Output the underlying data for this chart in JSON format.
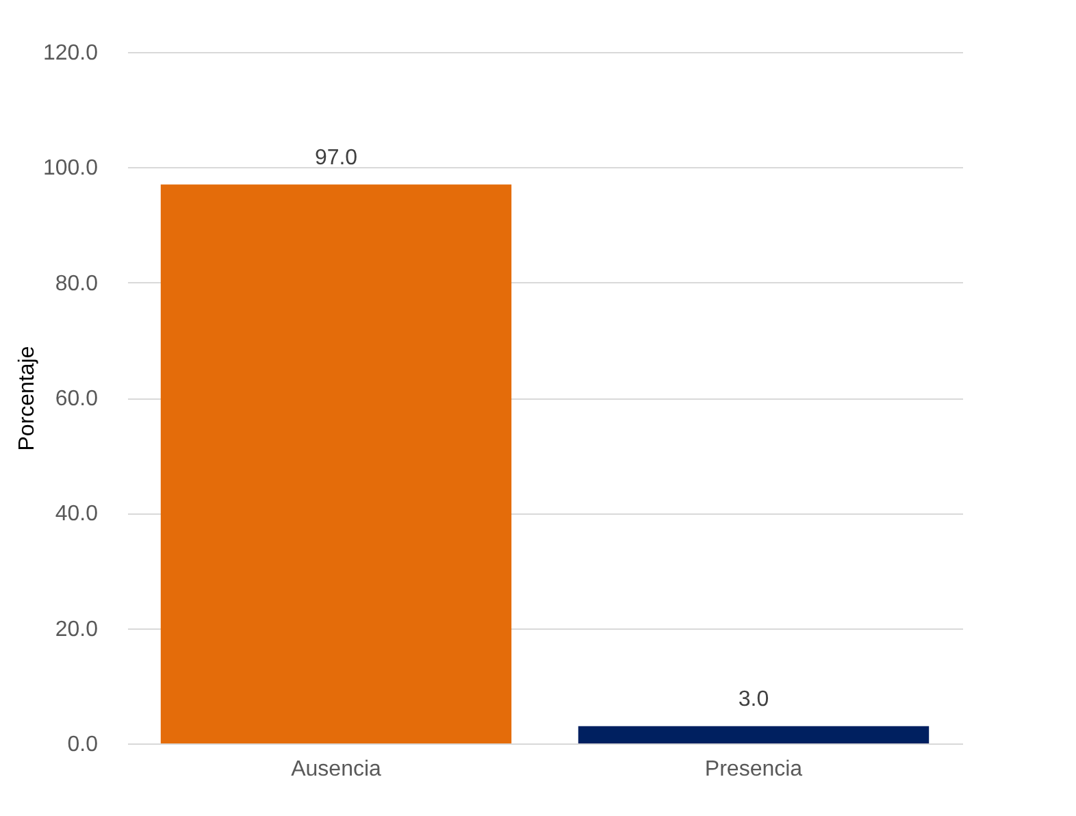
{
  "chart_data": {
    "type": "bar",
    "ylabel": "Porcentaje",
    "categories": [
      "Ausencia",
      "Presencia"
    ],
    "values": [
      97.0,
      3.0
    ],
    "colors": [
      "#e46c0a",
      "#002060"
    ],
    "value_labels": [
      "97.0",
      "3.0"
    ],
    "ylim": [
      0,
      120
    ],
    "yticks": [
      {
        "value": 0,
        "label": "0.0"
      },
      {
        "value": 20,
        "label": "20.0"
      },
      {
        "value": 40,
        "label": "40.0"
      },
      {
        "value": 60,
        "label": "60.0"
      },
      {
        "value": 80,
        "label": "80.0"
      },
      {
        "value": 100,
        "label": "100.0"
      },
      {
        "value": 120,
        "label": "120.0"
      }
    ],
    "grid": "y"
  }
}
